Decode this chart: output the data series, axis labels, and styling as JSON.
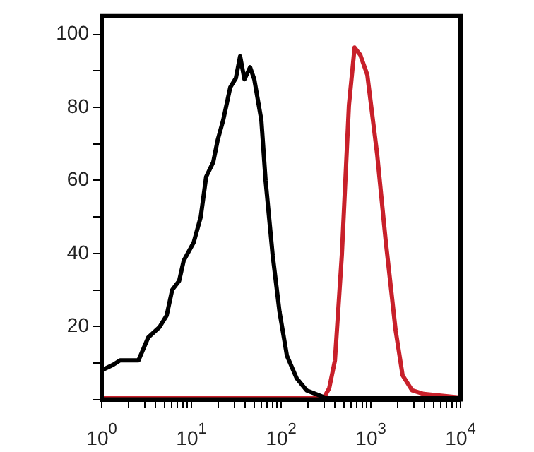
{
  "chart_data": {
    "type": "line",
    "log": "x",
    "grid": false,
    "legend": false,
    "marker": "none",
    "line_style": "solid",
    "xlim": [
      1,
      10000
    ],
    "xticks": [
      {
        "value": 1,
        "label": "10$^{0}$"
      },
      {
        "value": 2,
        "label": null
      },
      {
        "value": 3,
        "label": null
      },
      {
        "value": 4,
        "label": null
      },
      {
        "value": 5,
        "label": null
      },
      {
        "value": 6,
        "label": null
      },
      {
        "value": 7,
        "label": null
      },
      {
        "value": 8,
        "label": null
      },
      {
        "value": 9,
        "label": null
      },
      {
        "value": 10,
        "label": "10$^{1}$"
      },
      {
        "value": 20,
        "label": null
      },
      {
        "value": 30,
        "label": null
      },
      {
        "value": 40,
        "label": null
      },
      {
        "value": 50,
        "label": null
      },
      {
        "value": 60,
        "label": null
      },
      {
        "value": 70,
        "label": null
      },
      {
        "value": 80,
        "label": null
      },
      {
        "value": 90,
        "label": null
      },
      {
        "value": 100,
        "label": "10$^{2}$"
      },
      {
        "value": 200,
        "label": null
      },
      {
        "value": 300,
        "label": null
      },
      {
        "value": 400,
        "label": null
      },
      {
        "value": 500,
        "label": null
      },
      {
        "value": 600,
        "label": null
      },
      {
        "value": 700,
        "label": null
      },
      {
        "value": 800,
        "label": null
      },
      {
        "value": 900,
        "label": null
      },
      {
        "value": 1000,
        "label": "10$^{3}$"
      },
      {
        "value": 2000,
        "label": null
      },
      {
        "value": 3000,
        "label": null
      },
      {
        "value": 4000,
        "label": null
      },
      {
        "value": 5000,
        "label": null
      },
      {
        "value": 6000,
        "label": null
      },
      {
        "value": 7000,
        "label": null
      },
      {
        "value": 8000,
        "label": null
      },
      {
        "value": 9000,
        "label": null
      },
      {
        "value": 10000,
        "label": "10$^{4}$"
      }
    ],
    "ylim": [
      0,
      105
    ],
    "yticks": [
      {
        "value": 0,
        "label": null
      },
      {
        "value": 10,
        "label": null
      },
      20,
      {
        "value": 30,
        "label": null
      },
      40,
      {
        "value": 50,
        "label": null
      },
      60,
      {
        "value": 70,
        "label": null
      },
      80,
      {
        "value": 90,
        "label": null
      },
      100
    ],
    "series": [
      {
        "color": "#000000",
        "x": [
          1,
          1.34,
          1.6,
          2.57,
          3.3,
          4.4,
          5.3,
          6.1,
          7.3,
          8.2,
          10.6,
          12.7,
          14.6,
          17.5,
          19.6,
          22.6,
          27.1,
          31.3,
          34.9,
          39,
          45.1,
          50.2,
          60.2,
          67.1,
          80.5,
          96,
          116,
          149,
          192,
          309,
          10000
        ],
        "values": [
          8,
          9.5,
          10.7,
          10.7,
          17,
          19.8,
          23,
          30,
          32.5,
          38,
          43,
          50,
          61,
          65,
          71,
          76.5,
          85.5,
          88,
          94,
          87.7,
          91,
          87.7,
          76.5,
          60,
          39.5,
          24,
          12,
          5.8,
          2.5,
          0.5,
          0.5
        ]
      },
      {
        "color": "#c8202a",
        "x": [
          1,
          300,
          343,
          398,
          475,
          570,
          659,
          762,
          914,
          1178,
          1463,
          1888,
          2261,
          2884,
          3890,
          10000
        ],
        "values": [
          0.5,
          0.5,
          3,
          10.7,
          39.5,
          80.6,
          96.4,
          94.4,
          88.9,
          67,
          43.6,
          19,
          6.6,
          2.5,
          1.5,
          0.5
        ]
      }
    ]
  }
}
